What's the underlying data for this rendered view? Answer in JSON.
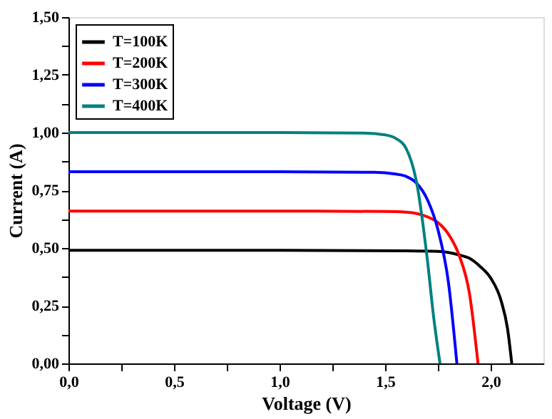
{
  "chart_data": {
    "type": "line",
    "xlabel": "Voltage (V)",
    "ylabel": "Current (A)",
    "xlim": [
      0,
      2.25
    ],
    "ylim": [
      0,
      1.5
    ],
    "xticks": [
      {
        "value": 0,
        "label": "0,0"
      },
      {
        "value": 0.25,
        "label": null
      },
      {
        "value": 0.5,
        "label": "0,5"
      },
      {
        "value": 0.75,
        "label": null
      },
      {
        "value": 1.0,
        "label": "1,0"
      },
      {
        "value": 1.25,
        "label": null
      },
      {
        "value": 1.5,
        "label": "1,5"
      },
      {
        "value": 1.75,
        "label": null
      },
      {
        "value": 2.0,
        "label": "2,0"
      }
    ],
    "yticks": [
      {
        "value": 0,
        "label": "0,00"
      },
      {
        "value": 0.125,
        "label": null
      },
      {
        "value": 0.25,
        "label": "0,25"
      },
      {
        "value": 0.375,
        "label": null
      },
      {
        "value": 0.5,
        "label": "0,50"
      },
      {
        "value": 0.625,
        "label": null
      },
      {
        "value": 0.75,
        "label": "0,75"
      },
      {
        "value": 0.875,
        "label": null
      },
      {
        "value": 1.0,
        "label": "1,00"
      },
      {
        "value": 1.125,
        "label": null
      },
      {
        "value": 1.25,
        "label": "1,25"
      },
      {
        "value": 1.375,
        "label": null
      },
      {
        "value": 1.5,
        "label": "1,50"
      }
    ],
    "grid": false,
    "legend": "top left",
    "marker": "none",
    "line_style": "solid",
    "series": [
      {
        "name": "T=100K",
        "color": "#000000",
        "x": [
          0,
          1.0,
          1.6,
          1.75,
          1.85,
          1.9,
          1.95,
          2.0,
          2.05,
          2.08,
          2.1
        ],
        "values": [
          0.49,
          0.49,
          0.488,
          0.485,
          0.47,
          0.455,
          0.42,
          0.37,
          0.27,
          0.15,
          0
        ]
      },
      {
        "name": "T=200K",
        "color": "#ff0000",
        "x": [
          0,
          1.0,
          1.5,
          1.6,
          1.7,
          1.75,
          1.8,
          1.85,
          1.9,
          1.94
        ],
        "values": [
          0.66,
          0.66,
          0.658,
          0.655,
          0.635,
          0.61,
          0.56,
          0.47,
          0.3,
          0
        ]
      },
      {
        "name": "T=300K",
        "color": "#0000ff",
        "x": [
          0,
          1.0,
          1.45,
          1.55,
          1.6,
          1.65,
          1.7,
          1.75,
          1.8,
          1.84
        ],
        "values": [
          0.83,
          0.83,
          0.828,
          0.82,
          0.81,
          0.78,
          0.71,
          0.58,
          0.35,
          0
        ]
      },
      {
        "name": "T=400K",
        "color": "#008080",
        "x": [
          0,
          1.0,
          1.4,
          1.5,
          1.55,
          1.6,
          1.65,
          1.7,
          1.73,
          1.76
        ],
        "values": [
          1.0,
          1.0,
          0.998,
          0.99,
          0.975,
          0.93,
          0.78,
          0.45,
          0.2,
          0
        ]
      }
    ]
  }
}
